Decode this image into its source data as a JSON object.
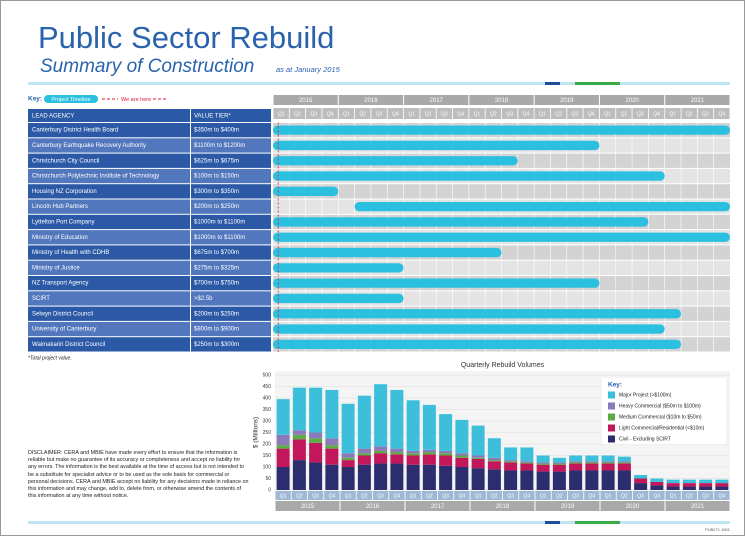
{
  "header": {
    "title": "Public Sector Rebuild",
    "subtitle": "Summary of Construction",
    "date": "as at January 2015"
  },
  "key": {
    "label": "Key:",
    "timeline": "Project Timeline",
    "now_label": "We are here",
    "now": 2015.08
  },
  "table": {
    "columns": [
      "LEAD AGENCY",
      "VALUE TIER*"
    ],
    "years": [
      2015,
      2016,
      2017,
      2018,
      2019,
      2020,
      2021
    ],
    "quarters": [
      "Q1",
      "Q2",
      "Q3",
      "Q4"
    ],
    "xlim": [
      2015,
      2022
    ],
    "bar_color": "#2bbfe0",
    "rows": [
      {
        "agency": "Canterbury District Health Board",
        "tier": "$350m to $400m",
        "start": 2015,
        "end": 2022
      },
      {
        "agency": "Canterbury Earthquake Recovery Authority",
        "tier": "$1100m to $1200m",
        "start": 2015,
        "end": 2020
      },
      {
        "agency": "Christchurch City Council",
        "tier": "$625m to $675m",
        "start": 2015,
        "end": 2018.75
      },
      {
        "agency": "Christchurch Polytechnic Institute of Technology",
        "tier": "$100m to $150m",
        "start": 2015,
        "end": 2021
      },
      {
        "agency": "Housing NZ Corporation",
        "tier": "$300m to $350m",
        "start": 2015,
        "end": 2016
      },
      {
        "agency": "Lincoln Hub Partners",
        "tier": "$200m to $250m",
        "start": 2016.25,
        "end": 2022
      },
      {
        "agency": "Lyttelton Port Company",
        "tier": "$1000m to $1100m",
        "start": 2015,
        "end": 2020.75
      },
      {
        "agency": "Ministry of Education",
        "tier": "$1000m to $1100m",
        "start": 2015,
        "end": 2022
      },
      {
        "agency": "Ministry of Health with CDHB",
        "tier": "$675m to $700m",
        "start": 2015,
        "end": 2018.5
      },
      {
        "agency": "Ministry of Justice",
        "tier": "$275m to $325m",
        "start": 2015,
        "end": 2017
      },
      {
        "agency": "NZ Transport Agency",
        "tier": "$700m to $750m",
        "start": 2015,
        "end": 2020
      },
      {
        "agency": "SCIRT",
        "tier": ">$2.5b",
        "start": 2015,
        "end": 2017
      },
      {
        "agency": "Selwyn District Council",
        "tier": "$200m to $250m",
        "start": 2015,
        "end": 2021.25
      },
      {
        "agency": "University of Canterbury",
        "tier": "$800m to $900m",
        "start": 2015,
        "end": 2021
      },
      {
        "agency": "Waimakariri District Council",
        "tier": "$250m to $300m",
        "start": 2015,
        "end": 2021.25
      }
    ],
    "note": "*Total project value."
  },
  "chart_data": {
    "type": "bar",
    "stacked": true,
    "title": "Quarterly Rebuild Volumes",
    "ylabel": "$ (Millions)",
    "categories": [
      "Q1",
      "Q2",
      "Q3",
      "Q4",
      "Q1",
      "Q2",
      "Q3",
      "Q4",
      "Q1",
      "Q2",
      "Q3",
      "Q4",
      "Q1",
      "Q2",
      "Q3",
      "Q4",
      "Q1",
      "Q2",
      "Q3",
      "Q4",
      "Q1",
      "Q2",
      "Q3",
      "Q4",
      "Q1",
      "Q2",
      "Q3",
      "Q4"
    ],
    "groups": [
      2015,
      2016,
      2017,
      2018,
      2019,
      2020,
      2021
    ],
    "ylim": [
      0,
      500
    ],
    "yticks": [
      0,
      50,
      100,
      150,
      200,
      250,
      300,
      350,
      400,
      450,
      500
    ],
    "grid": true,
    "legend_title": "Key:",
    "series": [
      {
        "name": "Civil - Excluding SCIRT",
        "color": "#2b2d6e",
        "values": [
          100,
          130,
          120,
          110,
          100,
          110,
          115,
          115,
          110,
          110,
          105,
          100,
          95,
          90,
          85,
          85,
          80,
          80,
          85,
          85,
          85,
          85,
          30,
          20,
          15,
          15,
          15,
          15
        ]
      },
      {
        "name": "Light Commercial/Residential (<$10m)",
        "color": "#c2185b",
        "values": [
          80,
          90,
          85,
          70,
          30,
          40,
          45,
          40,
          40,
          45,
          45,
          40,
          40,
          35,
          35,
          30,
          30,
          30,
          30,
          30,
          30,
          30,
          20,
          15,
          15,
          15,
          15,
          15
        ]
      },
      {
        "name": "Medium Commercial ($10m to $50m)",
        "color": "#5cab46",
        "values": [
          15,
          20,
          20,
          15,
          10,
          10,
          10,
          10,
          10,
          10,
          10,
          10,
          5,
          5,
          5,
          5,
          5,
          5,
          5,
          5,
          5,
          5,
          0,
          0,
          0,
          0,
          0,
          0
        ]
      },
      {
        "name": "Heavy Commercial ($50m to $100m)",
        "color": "#8a7ab8",
        "values": [
          45,
          20,
          25,
          30,
          20,
          20,
          20,
          15,
          10,
          10,
          10,
          10,
          10,
          10,
          5,
          5,
          5,
          5,
          5,
          5,
          5,
          5,
          0,
          0,
          0,
          0,
          0,
          0
        ]
      },
      {
        "name": "Major Project (>$100m)",
        "color": "#3dbfdc",
        "values": [
          155,
          185,
          195,
          210,
          215,
          230,
          270,
          255,
          220,
          195,
          160,
          145,
          130,
          85,
          55,
          60,
          30,
          20,
          25,
          25,
          25,
          20,
          15,
          15,
          15,
          15,
          15,
          15
        ]
      }
    ]
  },
  "disclaimer": "DISCLAIMER: CERA and MBIE have made every effort to ensure that the information is reliable but make no guarantee of its accuracy or completeness and accept no liability for any errors. The information is the best available at the time of access but is not intended to be a substitute for specialist advice or to be used as the sole basis for commercial or personal decisions. CERA and MBIE accept no liability for any decisions made in reliance on this information and may change, add to, delete from, or otherwise amend the contents of this information at any time without notice.",
  "footer": "PUB271.1501"
}
